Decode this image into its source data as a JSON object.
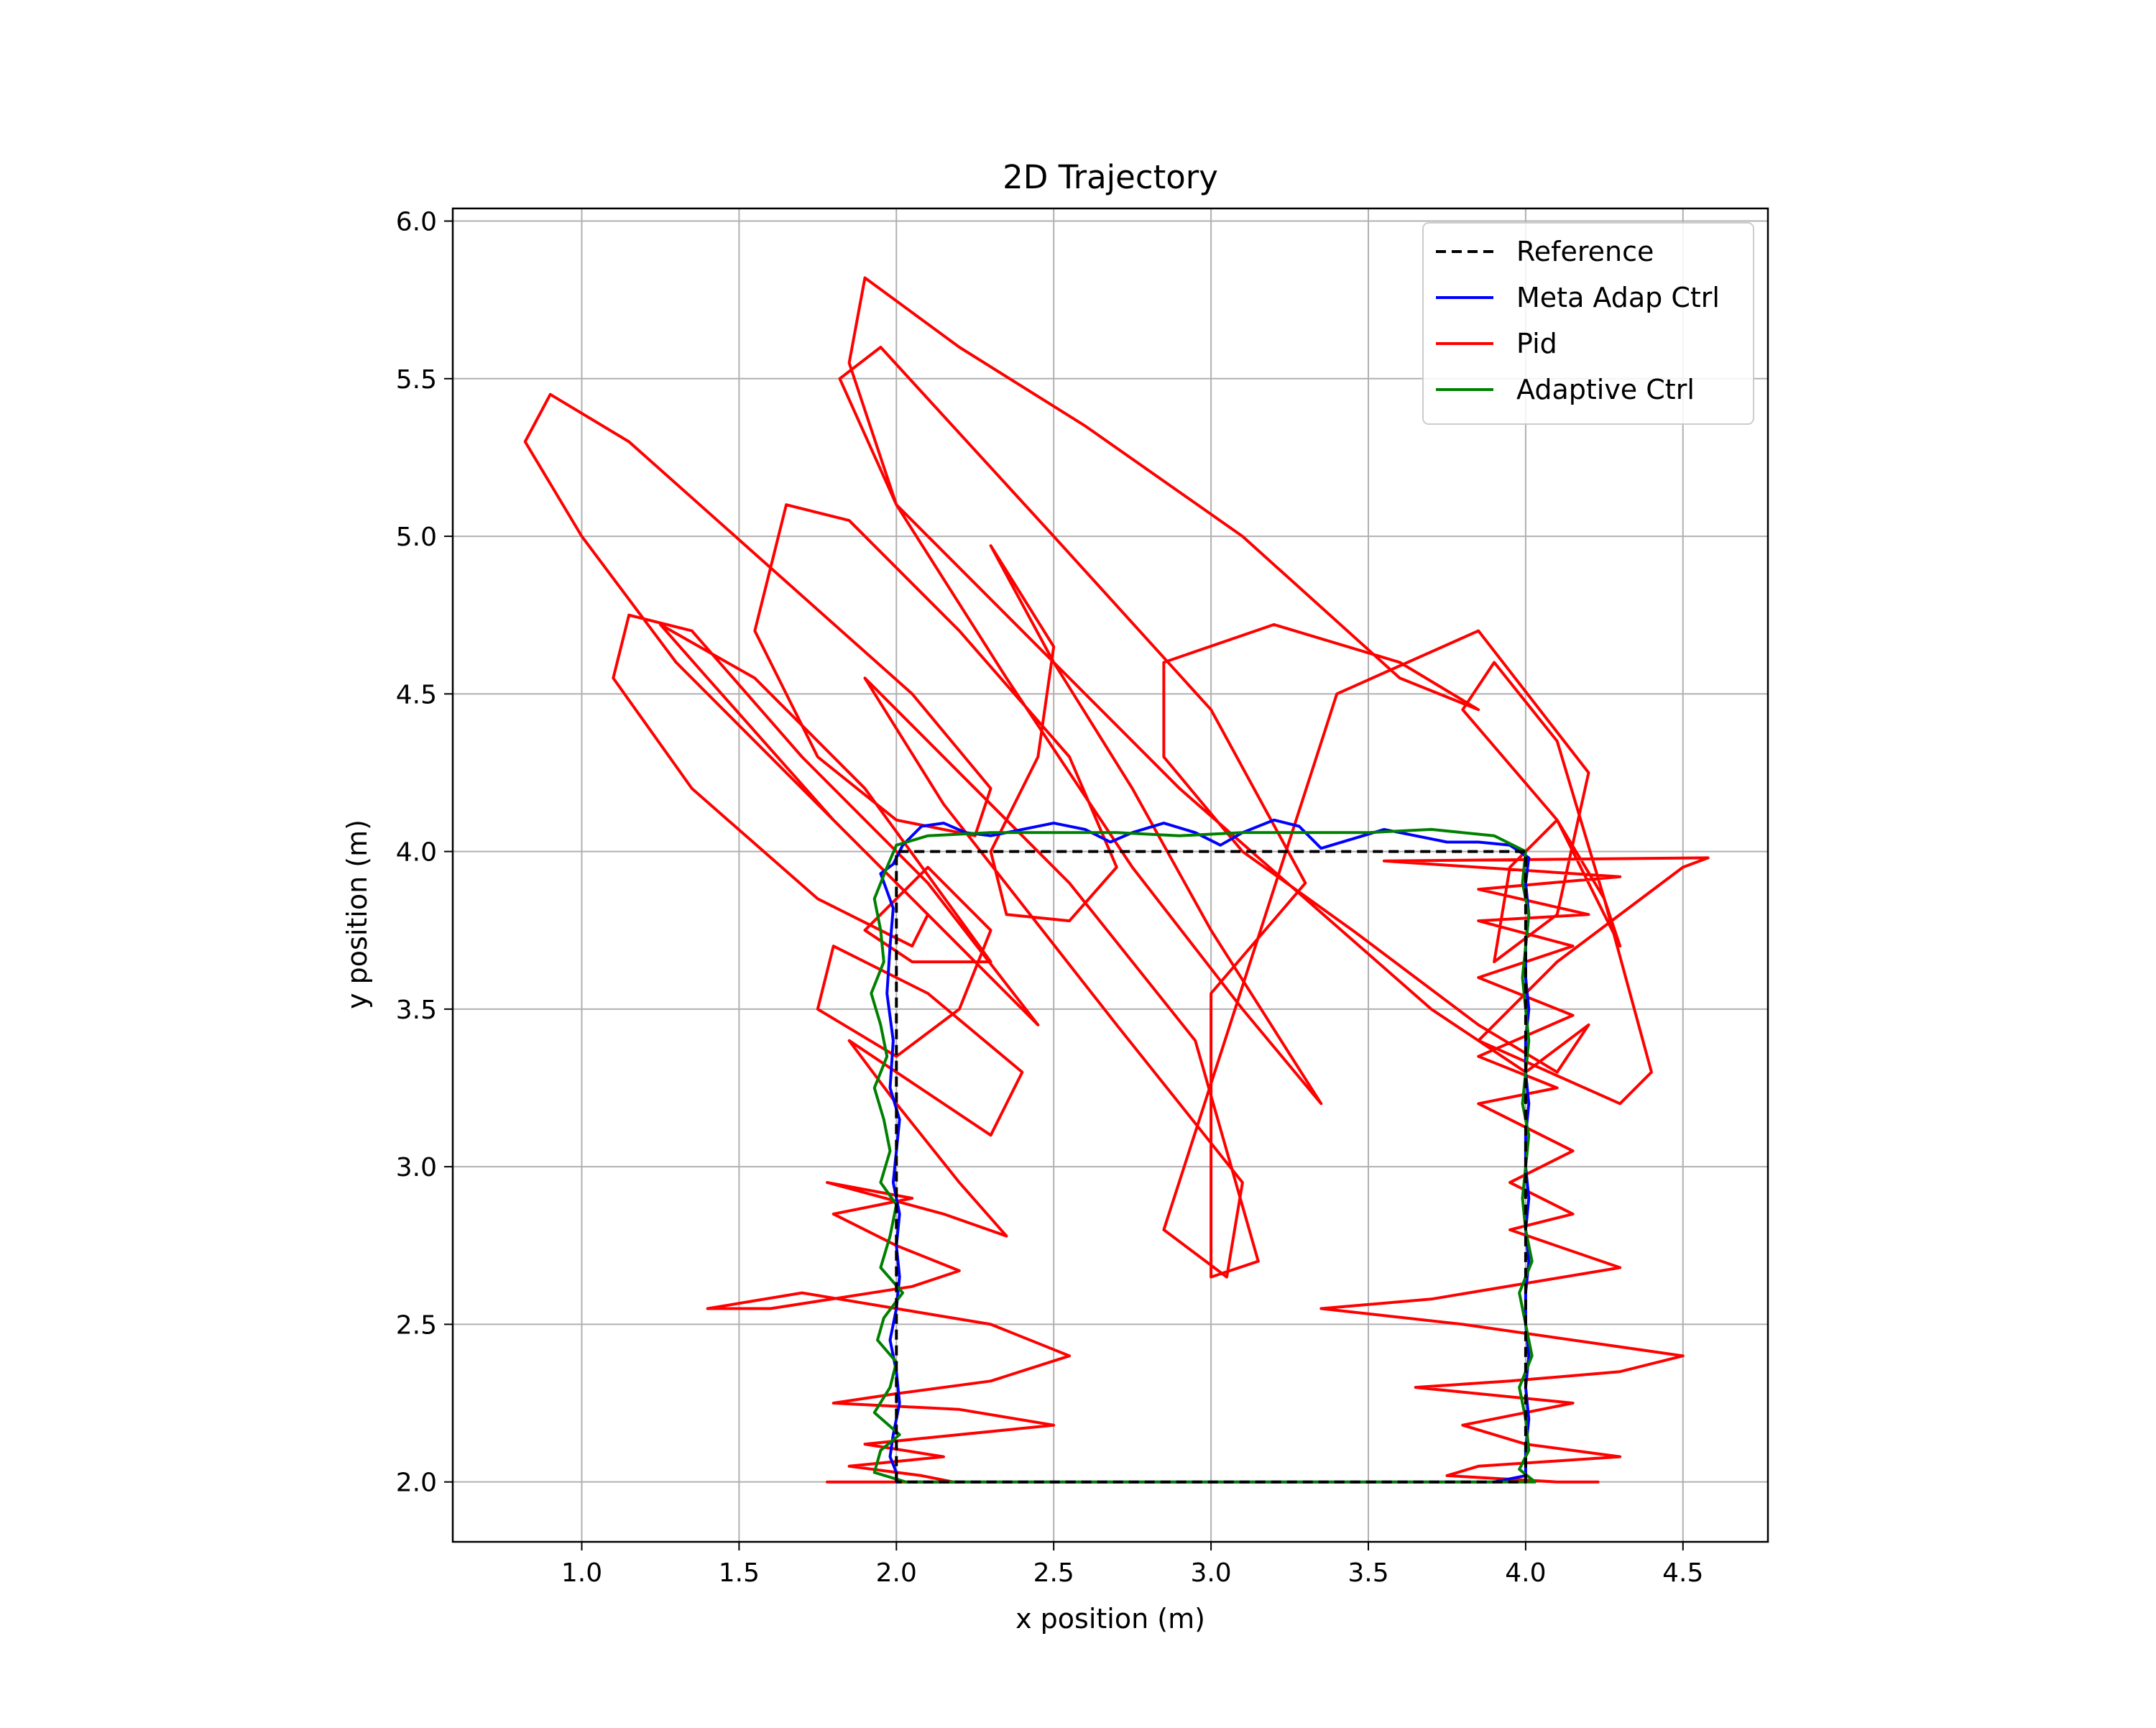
{
  "chart_data": {
    "type": "line",
    "title": "2D Trajectory",
    "xlabel": "x position (m)",
    "ylabel": "y position (m)",
    "xlim": [
      0.59,
      4.77
    ],
    "ylim": [
      1.81,
      6.04
    ],
    "xticks": [
      1.0,
      1.5,
      2.0,
      2.5,
      3.0,
      3.5,
      4.0,
      4.5
    ],
    "xtick_labels": [
      "1.0",
      "1.5",
      "2.0",
      "2.5",
      "3.0",
      "3.5",
      "4.0",
      "4.5"
    ],
    "yticks": [
      2.0,
      2.5,
      3.0,
      3.5,
      4.0,
      4.5,
      5.0,
      5.5,
      6.0
    ],
    "ytick_labels": [
      "2.0",
      "2.5",
      "3.0",
      "3.5",
      "4.0",
      "4.5",
      "5.0",
      "5.5",
      "6.0"
    ],
    "grid": true,
    "legend_position": "upper right",
    "series": [
      {
        "name": "Reference",
        "color": "#000000",
        "style": "dashed",
        "points": [
          [
            2.0,
            2.0
          ],
          [
            2.0,
            4.0
          ],
          [
            4.0,
            4.0
          ],
          [
            4.0,
            2.0
          ],
          [
            2.0,
            2.0
          ]
        ]
      },
      {
        "name": "Meta Adap Ctrl",
        "color": "#0000ff",
        "style": "solid",
        "points": [
          [
            2.0,
            2.0
          ],
          [
            2.0,
            2.03
          ],
          [
            1.98,
            2.08
          ],
          [
            1.99,
            2.15
          ],
          [
            2.01,
            2.25
          ],
          [
            2.0,
            2.35
          ],
          [
            1.98,
            2.45
          ],
          [
            2.0,
            2.55
          ],
          [
            2.01,
            2.65
          ],
          [
            2.0,
            2.75
          ],
          [
            2.01,
            2.85
          ],
          [
            1.99,
            2.95
          ],
          [
            2.0,
            3.05
          ],
          [
            2.01,
            3.15
          ],
          [
            1.98,
            3.25
          ],
          [
            1.99,
            3.4
          ],
          [
            1.97,
            3.55
          ],
          [
            1.98,
            3.7
          ],
          [
            1.99,
            3.82
          ],
          [
            1.95,
            3.93
          ],
          [
            1.99,
            3.96
          ],
          [
            2.02,
            4.02
          ],
          [
            2.08,
            4.08
          ],
          [
            2.15,
            4.09
          ],
          [
            2.22,
            4.06
          ],
          [
            2.3,
            4.05
          ],
          [
            2.4,
            4.07
          ],
          [
            2.5,
            4.09
          ],
          [
            2.6,
            4.07
          ],
          [
            2.68,
            4.03
          ],
          [
            2.75,
            4.06
          ],
          [
            2.85,
            4.09
          ],
          [
            2.95,
            4.06
          ],
          [
            3.03,
            4.02
          ],
          [
            3.1,
            4.06
          ],
          [
            3.2,
            4.1
          ],
          [
            3.28,
            4.08
          ],
          [
            3.35,
            4.01
          ],
          [
            3.45,
            4.04
          ],
          [
            3.55,
            4.07
          ],
          [
            3.65,
            4.05
          ],
          [
            3.75,
            4.03
          ],
          [
            3.85,
            4.03
          ],
          [
            3.95,
            4.02
          ],
          [
            4.01,
            3.98
          ],
          [
            4.0,
            3.9
          ],
          [
            4.01,
            3.8
          ],
          [
            4.0,
            3.7
          ],
          [
            4.0,
            3.6
          ],
          [
            4.01,
            3.5
          ],
          [
            4.0,
            3.4
          ],
          [
            4.0,
            3.3
          ],
          [
            4.01,
            3.2
          ],
          [
            4.0,
            3.1
          ],
          [
            4.0,
            3.0
          ],
          [
            4.01,
            2.9
          ],
          [
            4.0,
            2.8
          ],
          [
            4.01,
            2.7
          ],
          [
            4.0,
            2.6
          ],
          [
            4.0,
            2.5
          ],
          [
            4.01,
            2.4
          ],
          [
            4.0,
            2.3
          ],
          [
            4.01,
            2.2
          ],
          [
            4.0,
            2.1
          ],
          [
            4.0,
            2.02
          ],
          [
            3.9,
            2.0
          ],
          [
            3.5,
            2.0
          ],
          [
            3.0,
            2.0
          ],
          [
            2.5,
            2.0
          ],
          [
            2.05,
            2.0
          ]
        ]
      },
      {
        "name": "Pid",
        "color": "#ff0000",
        "style": "solid",
        "points": [
          [
            1.78,
            2.0
          ],
          [
            2.0,
            2.0
          ],
          [
            2.18,
            2.0
          ],
          [
            2.08,
            2.02
          ],
          [
            1.85,
            2.05
          ],
          [
            2.15,
            2.08
          ],
          [
            1.9,
            2.12
          ],
          [
            2.5,
            2.18
          ],
          [
            2.2,
            2.23
          ],
          [
            1.8,
            2.25
          ],
          [
            2.0,
            2.28
          ],
          [
            2.3,
            2.32
          ],
          [
            2.55,
            2.4
          ],
          [
            2.3,
            2.5
          ],
          [
            1.7,
            2.6
          ],
          [
            1.4,
            2.55
          ],
          [
            1.6,
            2.55
          ],
          [
            2.05,
            2.62
          ],
          [
            2.2,
            2.67
          ],
          [
            2.0,
            2.75
          ],
          [
            1.8,
            2.85
          ],
          [
            2.05,
            2.9
          ],
          [
            1.78,
            2.95
          ],
          [
            2.15,
            2.85
          ],
          [
            2.35,
            2.78
          ],
          [
            2.2,
            2.95
          ],
          [
            2.0,
            3.2
          ],
          [
            1.85,
            3.4
          ],
          [
            2.0,
            3.3
          ],
          [
            2.3,
            3.1
          ],
          [
            2.4,
            3.3
          ],
          [
            2.1,
            3.55
          ],
          [
            1.8,
            3.7
          ],
          [
            1.75,
            3.5
          ],
          [
            2.0,
            3.35
          ],
          [
            2.2,
            3.5
          ],
          [
            2.3,
            3.75
          ],
          [
            2.1,
            3.95
          ],
          [
            1.9,
            3.75
          ],
          [
            2.05,
            3.65
          ],
          [
            2.3,
            3.65
          ],
          [
            1.9,
            4.2
          ],
          [
            1.55,
            4.55
          ],
          [
            1.25,
            4.72
          ],
          [
            1.4,
            4.55
          ],
          [
            1.8,
            4.1
          ],
          [
            2.2,
            3.7
          ],
          [
            2.45,
            3.45
          ],
          [
            2.1,
            3.9
          ],
          [
            1.7,
            4.3
          ],
          [
            1.35,
            4.7
          ],
          [
            1.15,
            4.75
          ],
          [
            1.1,
            4.55
          ],
          [
            1.35,
            4.2
          ],
          [
            1.75,
            3.85
          ],
          [
            2.05,
            3.7
          ],
          [
            2.1,
            3.8
          ],
          [
            1.8,
            4.1
          ],
          [
            1.3,
            4.6
          ],
          [
            1.0,
            5.0
          ],
          [
            0.82,
            5.3
          ],
          [
            0.9,
            5.45
          ],
          [
            1.15,
            5.3
          ],
          [
            1.6,
            4.9
          ],
          [
            2.05,
            4.5
          ],
          [
            2.3,
            4.2
          ],
          [
            2.25,
            4.05
          ],
          [
            2.0,
            4.1
          ],
          [
            1.75,
            4.3
          ],
          [
            1.55,
            4.7
          ],
          [
            1.65,
            5.1
          ],
          [
            1.85,
            5.05
          ],
          [
            2.2,
            4.7
          ],
          [
            2.55,
            4.3
          ],
          [
            2.7,
            3.95
          ],
          [
            2.55,
            3.78
          ],
          [
            2.35,
            3.8
          ],
          [
            2.3,
            4.0
          ],
          [
            2.45,
            4.3
          ],
          [
            2.5,
            4.65
          ],
          [
            2.3,
            4.97
          ],
          [
            2.5,
            4.6
          ],
          [
            2.75,
            4.2
          ],
          [
            3.0,
            3.75
          ],
          [
            3.35,
            3.2
          ],
          [
            3.1,
            3.5
          ],
          [
            2.75,
            3.95
          ],
          [
            2.35,
            4.55
          ],
          [
            2.0,
            5.1
          ],
          [
            1.85,
            5.55
          ],
          [
            1.9,
            5.82
          ],
          [
            2.2,
            5.6
          ],
          [
            2.6,
            5.35
          ],
          [
            3.1,
            5.0
          ],
          [
            3.6,
            4.55
          ],
          [
            3.85,
            4.45
          ],
          [
            3.6,
            4.6
          ],
          [
            3.2,
            4.72
          ],
          [
            2.85,
            4.6
          ],
          [
            2.85,
            4.3
          ],
          [
            3.1,
            4.0
          ],
          [
            3.45,
            3.75
          ],
          [
            3.85,
            3.45
          ],
          [
            4.1,
            3.3
          ],
          [
            4.2,
            3.45
          ],
          [
            4.0,
            3.3
          ],
          [
            3.7,
            3.5
          ],
          [
            3.3,
            3.85
          ],
          [
            2.9,
            4.2
          ],
          [
            2.5,
            4.6
          ],
          [
            2.0,
            5.1
          ],
          [
            1.82,
            5.5
          ],
          [
            1.95,
            5.6
          ],
          [
            2.5,
            5.0
          ],
          [
            3.0,
            4.45
          ],
          [
            3.3,
            3.9
          ],
          [
            3.0,
            3.55
          ],
          [
            3.0,
            2.65
          ],
          [
            3.15,
            2.7
          ],
          [
            2.95,
            3.4
          ],
          [
            2.55,
            3.9
          ],
          [
            2.05,
            4.4
          ],
          [
            1.9,
            4.55
          ],
          [
            2.15,
            4.15
          ],
          [
            2.7,
            3.45
          ],
          [
            3.1,
            2.95
          ],
          [
            3.05,
            2.65
          ],
          [
            2.85,
            2.8
          ],
          [
            3.4,
            4.5
          ],
          [
            3.85,
            4.7
          ],
          [
            4.2,
            4.25
          ],
          [
            4.1,
            3.8
          ],
          [
            3.9,
            3.65
          ],
          [
            3.95,
            3.95
          ],
          [
            4.1,
            4.1
          ],
          [
            4.25,
            3.85
          ],
          [
            4.3,
            3.7
          ],
          [
            4.1,
            4.1
          ],
          [
            3.8,
            4.45
          ],
          [
            3.9,
            4.6
          ],
          [
            4.1,
            4.35
          ],
          [
            4.25,
            3.85
          ],
          [
            4.4,
            3.3
          ],
          [
            4.3,
            3.2
          ],
          [
            3.85,
            3.4
          ],
          [
            4.1,
            3.65
          ],
          [
            4.5,
            3.95
          ],
          [
            4.58,
            3.98
          ],
          [
            3.55,
            3.97
          ],
          [
            4.3,
            3.92
          ],
          [
            3.85,
            3.88
          ],
          [
            4.2,
            3.8
          ],
          [
            3.85,
            3.78
          ],
          [
            4.15,
            3.7
          ],
          [
            3.85,
            3.6
          ],
          [
            4.15,
            3.48
          ],
          [
            3.85,
            3.35
          ],
          [
            4.1,
            3.25
          ],
          [
            3.85,
            3.2
          ],
          [
            4.15,
            3.05
          ],
          [
            3.95,
            2.95
          ],
          [
            4.15,
            2.85
          ],
          [
            3.95,
            2.8
          ],
          [
            4.3,
            2.68
          ],
          [
            3.7,
            2.58
          ],
          [
            3.35,
            2.55
          ],
          [
            3.8,
            2.5
          ],
          [
            4.5,
            2.4
          ],
          [
            4.3,
            2.35
          ],
          [
            3.95,
            2.32
          ],
          [
            3.65,
            2.3
          ],
          [
            4.15,
            2.25
          ],
          [
            3.8,
            2.18
          ],
          [
            4.0,
            2.12
          ],
          [
            4.3,
            2.08
          ],
          [
            3.85,
            2.05
          ],
          [
            3.75,
            2.02
          ],
          [
            4.1,
            2.0
          ],
          [
            4.23,
            2.0
          ]
        ]
      },
      {
        "name": "Adaptive Ctrl",
        "color": "#008000",
        "style": "solid",
        "points": [
          [
            2.03,
            2.0
          ],
          [
            1.93,
            2.03
          ],
          [
            1.95,
            2.1
          ],
          [
            2.01,
            2.15
          ],
          [
            1.93,
            2.22
          ],
          [
            1.98,
            2.3
          ],
          [
            2.0,
            2.38
          ],
          [
            1.94,
            2.45
          ],
          [
            1.96,
            2.52
          ],
          [
            2.02,
            2.6
          ],
          [
            1.95,
            2.68
          ],
          [
            1.98,
            2.78
          ],
          [
            2.0,
            2.88
          ],
          [
            1.95,
            2.95
          ],
          [
            1.98,
            3.05
          ],
          [
            1.96,
            3.15
          ],
          [
            1.93,
            3.25
          ],
          [
            1.97,
            3.35
          ],
          [
            1.95,
            3.45
          ],
          [
            1.92,
            3.55
          ],
          [
            1.96,
            3.65
          ],
          [
            1.95,
            3.75
          ],
          [
            1.93,
            3.85
          ],
          [
            1.97,
            3.95
          ],
          [
            2.0,
            4.02
          ],
          [
            2.1,
            4.05
          ],
          [
            2.3,
            4.06
          ],
          [
            2.5,
            4.06
          ],
          [
            2.7,
            4.06
          ],
          [
            2.9,
            4.05
          ],
          [
            3.1,
            4.06
          ],
          [
            3.3,
            4.06
          ],
          [
            3.5,
            4.06
          ],
          [
            3.7,
            4.07
          ],
          [
            3.9,
            4.05
          ],
          [
            4.0,
            4.0
          ],
          [
            3.99,
            3.9
          ],
          [
            4.01,
            3.8
          ],
          [
            4.0,
            3.7
          ],
          [
            3.99,
            3.6
          ],
          [
            4.0,
            3.5
          ],
          [
            4.01,
            3.4
          ],
          [
            4.0,
            3.3
          ],
          [
            3.99,
            3.2
          ],
          [
            4.01,
            3.1
          ],
          [
            4.0,
            3.0
          ],
          [
            3.99,
            2.9
          ],
          [
            4.0,
            2.8
          ],
          [
            4.02,
            2.7
          ],
          [
            3.98,
            2.6
          ],
          [
            4.0,
            2.5
          ],
          [
            4.02,
            2.4
          ],
          [
            3.98,
            2.3
          ],
          [
            4.0,
            2.2
          ],
          [
            4.01,
            2.1
          ],
          [
            3.98,
            2.04
          ],
          [
            4.03,
            2.0
          ],
          [
            3.5,
            2.0
          ],
          [
            3.0,
            2.0
          ],
          [
            2.5,
            2.0
          ],
          [
            2.03,
            2.0
          ]
        ]
      }
    ]
  }
}
